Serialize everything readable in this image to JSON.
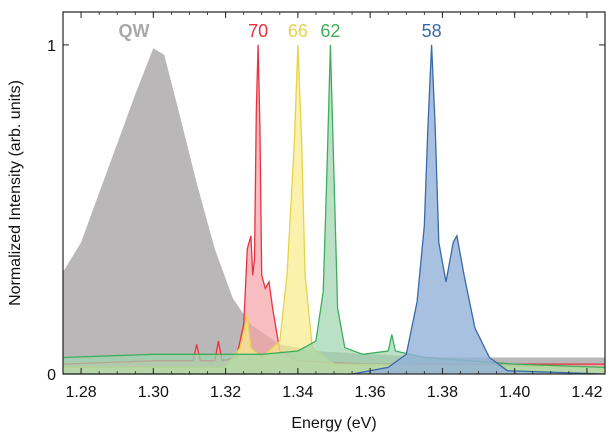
{
  "chart_data": {
    "type": "area",
    "xlabel": "Energy (eV)",
    "ylabel": "Normalized Intensity (arb. units)",
    "xlim": [
      1.275,
      1.425
    ],
    "ylim": [
      0,
      1.1
    ],
    "x_ticks": [
      1.28,
      1.3,
      1.32,
      1.34,
      1.36,
      1.38,
      1.4,
      1.42
    ],
    "x_tick_labels": [
      "1.28",
      "1.30",
      "1.32",
      "1.34",
      "1.36",
      "1.38",
      "1.40",
      "1.42"
    ],
    "y_ticks": [
      0,
      1
    ],
    "y_tick_labels": [
      "0",
      "1"
    ],
    "grid": false,
    "series": [
      {
        "name": "QW",
        "color": "#a9a9a9",
        "fill": "#b5b3b4",
        "peak_x": 1.3,
        "points": [
          [
            1.275,
            0.31
          ],
          [
            1.28,
            0.4
          ],
          [
            1.285,
            0.55
          ],
          [
            1.29,
            0.7
          ],
          [
            1.295,
            0.85
          ],
          [
            1.3,
            0.99
          ],
          [
            1.303,
            0.97
          ],
          [
            1.307,
            0.8
          ],
          [
            1.312,
            0.58
          ],
          [
            1.317,
            0.38
          ],
          [
            1.322,
            0.23
          ],
          [
            1.327,
            0.15
          ],
          [
            1.335,
            0.09
          ],
          [
            1.345,
            0.07
          ],
          [
            1.36,
            0.06
          ],
          [
            1.38,
            0.05
          ],
          [
            1.4,
            0.05
          ],
          [
            1.41,
            0.05
          ],
          [
            1.425,
            0.05
          ]
        ]
      },
      {
        "name": "70",
        "color": "#e8323f",
        "fill": "#f5a3a8",
        "peak_x": 1.329,
        "points": [
          [
            1.275,
            0.03
          ],
          [
            1.3,
            0.04
          ],
          [
            1.311,
            0.04
          ],
          [
            1.312,
            0.09
          ],
          [
            1.313,
            0.04
          ],
          [
            1.317,
            0.04
          ],
          [
            1.318,
            0.1
          ],
          [
            1.319,
            0.04
          ],
          [
            1.323,
            0.05
          ],
          [
            1.325,
            0.15
          ],
          [
            1.326,
            0.38
          ],
          [
            1.327,
            0.42
          ],
          [
            1.3275,
            0.3
          ],
          [
            1.328,
            0.35
          ],
          [
            1.3285,
            0.8
          ],
          [
            1.329,
            1.0
          ],
          [
            1.3295,
            0.75
          ],
          [
            1.33,
            0.3
          ],
          [
            1.331,
            0.26
          ],
          [
            1.332,
            0.28
          ],
          [
            1.333,
            0.2
          ],
          [
            1.335,
            0.07
          ],
          [
            1.34,
            0.04
          ],
          [
            1.36,
            0.03
          ],
          [
            1.425,
            0.03
          ]
        ]
      },
      {
        "name": "66",
        "color": "#e6d34a",
        "fill": "#f6eb8c",
        "peak_x": 1.34,
        "points": [
          [
            1.275,
            0.02
          ],
          [
            1.32,
            0.02
          ],
          [
            1.324,
            0.08
          ],
          [
            1.326,
            0.18
          ],
          [
            1.327,
            0.08
          ],
          [
            1.33,
            0.05
          ],
          [
            1.335,
            0.1
          ],
          [
            1.337,
            0.3
          ],
          [
            1.339,
            0.7
          ],
          [
            1.34,
            1.0
          ],
          [
            1.341,
            0.72
          ],
          [
            1.342,
            0.3
          ],
          [
            1.344,
            0.08
          ],
          [
            1.35,
            0.03
          ],
          [
            1.425,
            0.02
          ]
        ]
      },
      {
        "name": "62",
        "color": "#3fae5c",
        "fill": "#9fd5ae",
        "peak_x": 1.349,
        "points": [
          [
            1.275,
            0.05
          ],
          [
            1.3,
            0.06
          ],
          [
            1.33,
            0.06
          ],
          [
            1.34,
            0.07
          ],
          [
            1.345,
            0.1
          ],
          [
            1.347,
            0.25
          ],
          [
            1.348,
            0.6
          ],
          [
            1.349,
            1.0
          ],
          [
            1.35,
            0.6
          ],
          [
            1.351,
            0.2
          ],
          [
            1.353,
            0.08
          ],
          [
            1.358,
            0.06
          ],
          [
            1.365,
            0.07
          ],
          [
            1.366,
            0.12
          ],
          [
            1.367,
            0.07
          ],
          [
            1.375,
            0.05
          ],
          [
            1.4,
            0.03
          ],
          [
            1.425,
            0.02
          ]
        ]
      },
      {
        "name": "58",
        "color": "#3a6aa7",
        "fill": "#92b1d8",
        "peak_x": 1.377,
        "points": [
          [
            1.275,
            0.0
          ],
          [
            1.355,
            0.0
          ],
          [
            1.365,
            0.02
          ],
          [
            1.37,
            0.06
          ],
          [
            1.373,
            0.22
          ],
          [
            1.375,
            0.45
          ],
          [
            1.376,
            0.75
          ],
          [
            1.377,
            1.0
          ],
          [
            1.378,
            0.75
          ],
          [
            1.379,
            0.4
          ],
          [
            1.381,
            0.28
          ],
          [
            1.383,
            0.4
          ],
          [
            1.384,
            0.42
          ],
          [
            1.386,
            0.3
          ],
          [
            1.389,
            0.14
          ],
          [
            1.393,
            0.05
          ],
          [
            1.398,
            0.01
          ],
          [
            1.425,
            0.0
          ]
        ]
      }
    ]
  }
}
